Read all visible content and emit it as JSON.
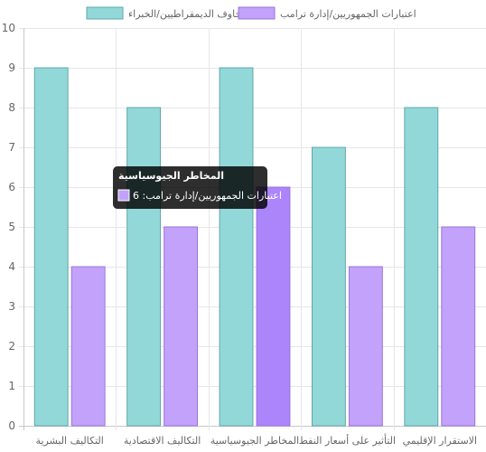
{
  "chart_data": {
    "type": "bar",
    "categories": [
      "التكاليف البشرية",
      "التكاليف الاقتصادية",
      "المخاطر الجيوسياسية",
      "التأثير على أسعار النفط",
      "الاستقرار الإقليمي"
    ],
    "series": [
      {
        "name": "مخاوف الديمقراطيين/الخبراء",
        "values": [
          9,
          8,
          9,
          7,
          8
        ],
        "color": "#93d8d9",
        "border": "#5fa7a8"
      },
      {
        "name": "اعتبارات الجمهوريين/إدارة ترامب",
        "values": [
          4,
          5,
          6,
          4,
          5
        ],
        "color": "#c2a2fb",
        "border": "#9a74db"
      }
    ],
    "ylim": [
      0,
      10
    ],
    "y_ticks": [
      0,
      1,
      2,
      3,
      4,
      5,
      6,
      7,
      8,
      9,
      10
    ],
    "grid": true,
    "legend_position": "top",
    "highlight": {
      "category_index": 2,
      "series_index": 1,
      "color": "#ad85fb"
    },
    "tooltip": {
      "title": "المخاطر الجيوسياسية",
      "label": "اعتبارات الجمهوريين/إدارة ترامب: 6"
    }
  }
}
